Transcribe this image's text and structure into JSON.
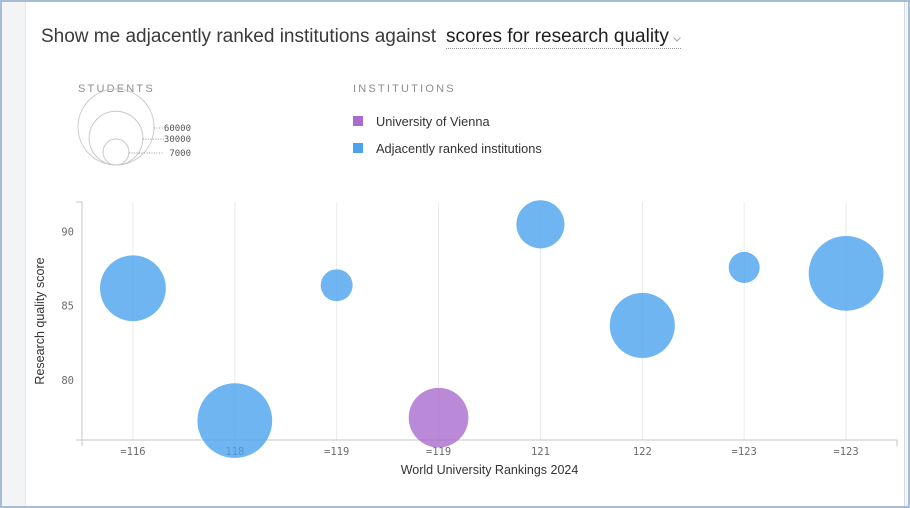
{
  "header": {
    "prompt": "Show me adjacently ranked institutions against",
    "dropdown": {
      "value": "scores for research quality",
      "icon": "chevron-down-icon"
    }
  },
  "chart_data": {
    "type": "scatter",
    "xlabel": "World University Rankings 2024",
    "ylabel": "Research quality score",
    "categories": [
      "=116",
      "118",
      "=119",
      "=119",
      "121",
      "122",
      "=123",
      "=123"
    ],
    "yticks": [
      80,
      85,
      90
    ],
    "ylim": [
      76,
      92
    ],
    "grid_x": true,
    "grid_y": false,
    "legend": {
      "title": "INSTITUTIONS",
      "position": "top"
    },
    "size_legend": {
      "title": "STUDENTS",
      "values": [
        60000,
        30000,
        7000
      ]
    },
    "series": [
      {
        "name": "University of Vienna",
        "color": "#a96bcd",
        "values": [
          null,
          null,
          null,
          77.5,
          null,
          null,
          null,
          null
        ],
        "students": [
          null,
          null,
          null,
          37000,
          null,
          null,
          null,
          null
        ]
      },
      {
        "name": "Adjacently ranked institutions",
        "color": "#4ba3ef",
        "values": [
          86.2,
          77.3,
          86.4,
          null,
          90.5,
          83.7,
          87.6,
          87.2
        ],
        "students": [
          45000,
          58000,
          10600,
          null,
          24000,
          44000,
          10000,
          58000
        ]
      }
    ]
  }
}
